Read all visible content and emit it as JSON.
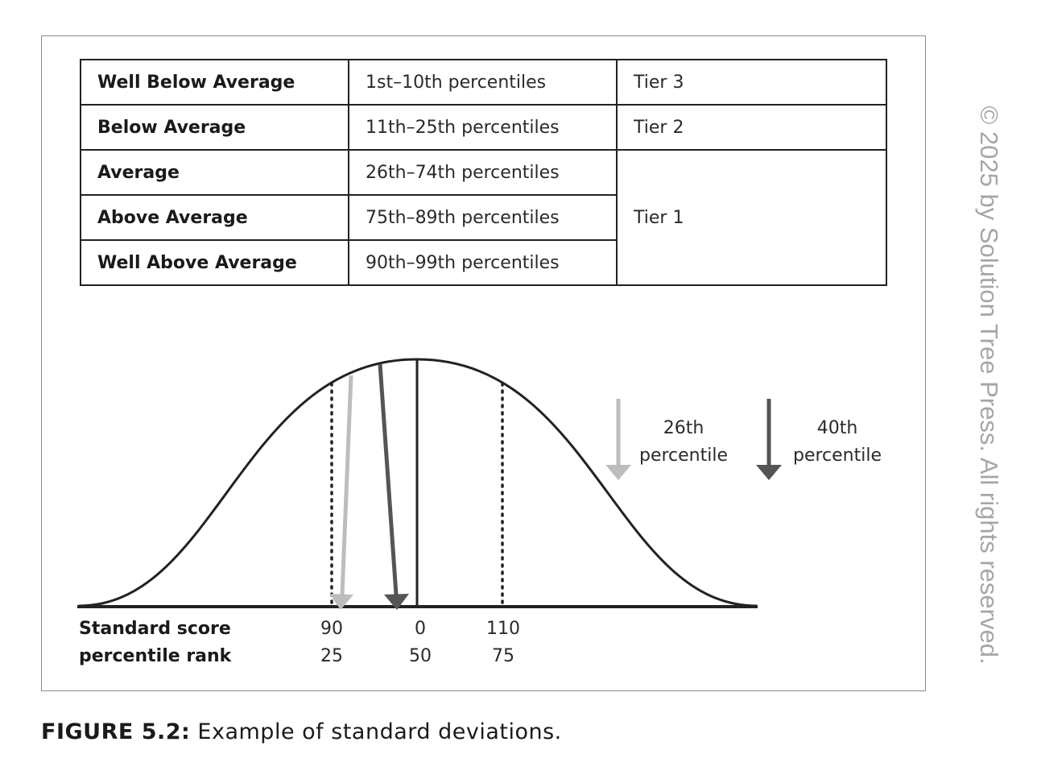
{
  "table": {
    "rows": [
      {
        "label": "Well Below Average",
        "range": "1st–10th percentiles",
        "tier": "Tier 3"
      },
      {
        "label": "Below Average",
        "range": "11th–25th percentiles",
        "tier": "Tier 2"
      },
      {
        "label": "Average",
        "range": "26th–74th percentiles",
        "tier": "Tier 1"
      },
      {
        "label": "Above Average",
        "range": "75th–89th percentiles"
      },
      {
        "label": "Well Above Average",
        "range": "90th–99th percentiles"
      }
    ]
  },
  "diagram": {
    "axis_labels": {
      "standard_score": "Standard score",
      "percentile_rank": "percentile rank"
    },
    "ticks": [
      {
        "standard_score": "90",
        "percentile_rank": "25"
      },
      {
        "standard_score": "0",
        "percentile_rank": "50"
      },
      {
        "standard_score": "110",
        "percentile_rank": "75"
      }
    ],
    "legend": [
      {
        "line1": "26th",
        "line2": "percentile",
        "color": "#bdbdbd"
      },
      {
        "line1": "40th",
        "line2": "percentile",
        "color": "#555555"
      }
    ]
  },
  "caption": {
    "figure": "FIGURE 5.2:",
    "text": " Example of standard deviations."
  },
  "copyright": "© 2025 by Solution Tree Press. All rights reserved."
}
